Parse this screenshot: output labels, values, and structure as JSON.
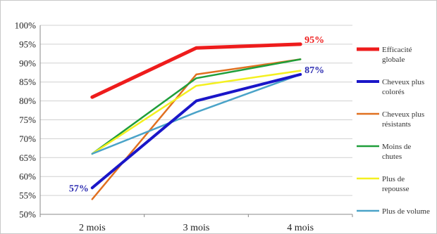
{
  "chart_data": {
    "type": "line",
    "title": "",
    "xlabel": "",
    "ylabel": "",
    "categories": [
      "2 mois",
      "3 mois",
      "4 mois"
    ],
    "yticks": [
      "50%",
      "55%",
      "60%",
      "65%",
      "70%",
      "75%",
      "80%",
      "85%",
      "90%",
      "95%",
      "100%"
    ],
    "ylim": [
      50,
      100
    ],
    "grid": true,
    "legend_position": "right",
    "series": [
      {
        "name": "Efficacité globale",
        "legend_lines": [
          "Efficacité",
          "globale"
        ],
        "values": [
          81,
          94,
          95
        ],
        "color": "#ee1c1c",
        "width": 5
      },
      {
        "name": "Cheveux plus colorés",
        "legend_lines": [
          "Cheveux plus",
          "colorés"
        ],
        "values": [
          57,
          80,
          87
        ],
        "color": "#1a16c8",
        "width": 4
      },
      {
        "name": "Cheveux plus résistants",
        "legend_lines": [
          "Cheveux plus",
          "résistants"
        ],
        "values": [
          54,
          87,
          91
        ],
        "color": "#e07020",
        "width": 2.5
      },
      {
        "name": "Moins de chutes",
        "legend_lines": [
          "Moins de",
          "chutes"
        ],
        "values": [
          66,
          86,
          91
        ],
        "color": "#1f9e3a",
        "width": 2.5
      },
      {
        "name": "Plus de repousse",
        "legend_lines": [
          "Plus de",
          "repousse"
        ],
        "values": [
          66,
          84,
          88
        ],
        "color": "#f4f020",
        "width": 2.5
      },
      {
        "name": "Plus de volume",
        "legend_lines": [
          "Plus de volume"
        ],
        "values": [
          66,
          77,
          87
        ],
        "color": "#4aa3c8",
        "width": 2.5
      }
    ],
    "annotations": [
      {
        "text": "95%",
        "color": "#ee1c1c",
        "series": 0,
        "point": 2
      },
      {
        "text": "87%",
        "color": "#2a2ab0",
        "series": 1,
        "point": 2
      },
      {
        "text": "57%",
        "color": "#2a2ab0",
        "series": 1,
        "point": 0
      }
    ]
  }
}
